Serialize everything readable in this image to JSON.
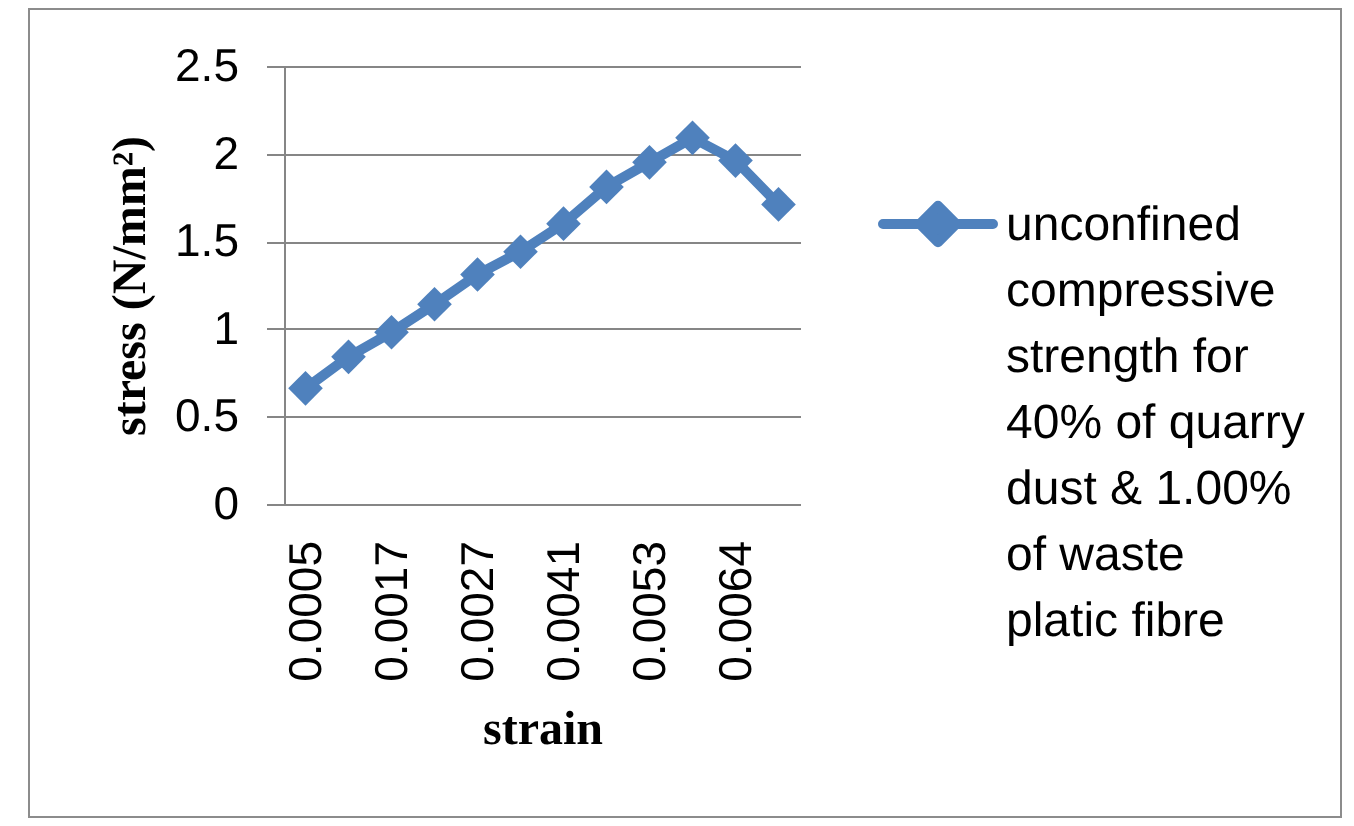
{
  "chart_data": {
    "type": "line",
    "xlabel": "strain",
    "ylabel": "stress (N/mm²)",
    "categories": [
      "0.0005",
      null,
      "0.0017",
      null,
      "0.0027",
      null,
      "0.0041",
      null,
      "0.0053",
      null,
      "0.0064",
      null
    ],
    "series": [
      {
        "name": "unconfined compressive strength for 40% of quarry dust & 1.00% of waste platic fibre",
        "color": "#4f81bd",
        "values": [
          0.66,
          0.84,
          0.98,
          1.14,
          1.31,
          1.44,
          1.6,
          1.81,
          1.95,
          2.09,
          1.96,
          1.71
        ]
      }
    ],
    "ylim": [
      0,
      2.5
    ],
    "yticks": [
      0,
      0.5,
      1,
      1.5,
      2,
      2.5
    ],
    "grid": "y",
    "legend": "right",
    "marker": "diamond",
    "line_style": "solid"
  }
}
